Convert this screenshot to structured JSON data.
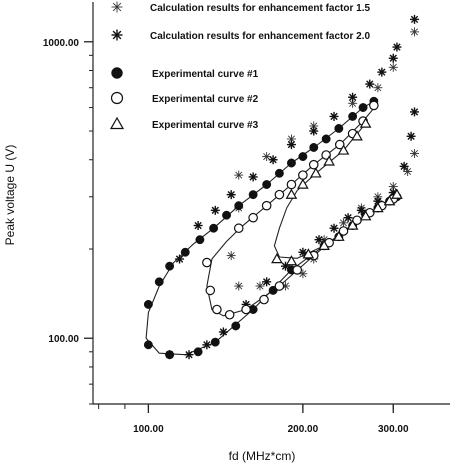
{
  "chart_data": {
    "type": "scatter",
    "xlabel": "fd (MHz*cm)",
    "ylabel": "Peak voltage U (V)",
    "x_scale": "log",
    "y_scale": "log",
    "xlim": [
      78,
      370
    ],
    "ylim": [
      60,
      1300
    ],
    "x_ticks": [
      {
        "value": 100,
        "label": "100.00"
      },
      {
        "value": 200,
        "label": "200.00"
      },
      {
        "value": 300,
        "label": "300.00"
      }
    ],
    "y_ticks": [
      {
        "value": 100,
        "label": "100.00"
      },
      {
        "value": 1000,
        "label": "1000.00"
      }
    ],
    "series": [
      {
        "name": "Calculation results for enhancement factor 1.5",
        "marker": "asterisk-light",
        "color": "#333333",
        "points": [
          [
            150,
            275
          ],
          [
            145,
            190
          ],
          [
            150,
            150
          ],
          [
            165,
            150
          ],
          [
            185,
            150
          ],
          [
            200,
            165
          ],
          [
            210,
            185
          ],
          [
            220,
            215
          ],
          [
            240,
            245
          ],
          [
            260,
            275
          ],
          [
            280,
            300
          ],
          [
            300,
            325
          ],
          [
            320,
            365
          ],
          [
            330,
            420
          ],
          [
            150,
            355
          ],
          [
            170,
            410
          ],
          [
            190,
            470
          ],
          [
            210,
            520
          ],
          [
            230,
            560
          ],
          [
            250,
            620
          ],
          [
            280,
            700
          ],
          [
            300,
            820
          ],
          [
            330,
            1080
          ]
        ]
      },
      {
        "name": "Calculation results for enhancement factor 2.0",
        "marker": "asterisk",
        "color": "#111111",
        "points": [
          [
            110,
            88
          ],
          [
            120,
            88
          ],
          [
            130,
            95
          ],
          [
            140,
            105
          ],
          [
            155,
            130
          ],
          [
            170,
            155
          ],
          [
            185,
            175
          ],
          [
            200,
            195
          ],
          [
            215,
            215
          ],
          [
            230,
            235
          ],
          [
            245,
            255
          ],
          [
            260,
            270
          ],
          [
            280,
            290
          ],
          [
            300,
            310
          ],
          [
            315,
            380
          ],
          [
            325,
            480
          ],
          [
            330,
            580
          ],
          [
            115,
            185
          ],
          [
            125,
            240
          ],
          [
            135,
            270
          ],
          [
            145,
            305
          ],
          [
            160,
            350
          ],
          [
            175,
            400
          ],
          [
            190,
            450
          ],
          [
            210,
            500
          ],
          [
            230,
            560
          ],
          [
            250,
            650
          ],
          [
            270,
            720
          ],
          [
            285,
            790
          ],
          [
            300,
            880
          ],
          [
            305,
            960
          ],
          [
            330,
            1190
          ]
        ]
      },
      {
        "name": "Experimental curve #1",
        "marker": "filled-circle",
        "color": "#111111",
        "points": [
          [
            100,
            95
          ],
          [
            110,
            88
          ],
          [
            125,
            90
          ],
          [
            135,
            97
          ],
          [
            148,
            110
          ],
          [
            160,
            125
          ],
          [
            175,
            145
          ],
          [
            190,
            170
          ],
          [
            205,
            190
          ],
          [
            220,
            205
          ],
          [
            235,
            220
          ],
          [
            250,
            240
          ],
          [
            265,
            260
          ],
          [
            280,
            275
          ],
          [
            295,
            290
          ],
          [
            305,
            300
          ],
          [
            100,
            130
          ],
          [
            105,
            155
          ],
          [
            110,
            175
          ],
          [
            118,
            195
          ],
          [
            126,
            215
          ],
          [
            134,
            235
          ],
          [
            142,
            260
          ],
          [
            150,
            280
          ],
          [
            160,
            305
          ],
          [
            170,
            330
          ],
          [
            180,
            360
          ],
          [
            190,
            390
          ],
          [
            200,
            410
          ],
          [
            210,
            440
          ],
          [
            222,
            470
          ],
          [
            235,
            510
          ],
          [
            250,
            560
          ],
          [
            262,
            600
          ],
          [
            275,
            630
          ]
        ]
      },
      {
        "name": "Experimental curve #2",
        "marker": "open-circle",
        "color": "#111111",
        "points": [
          [
            130,
            180
          ],
          [
            132,
            145
          ],
          [
            136,
            125
          ],
          [
            144,
            120
          ],
          [
            155,
            125
          ],
          [
            168,
            135
          ],
          [
            180,
            150
          ],
          [
            195,
            170
          ],
          [
            210,
            190
          ],
          [
            225,
            210
          ],
          [
            240,
            230
          ],
          [
            255,
            250
          ],
          [
            270,
            265
          ],
          [
            285,
            280
          ],
          [
            300,
            295
          ],
          [
            150,
            235
          ],
          [
            160,
            255
          ],
          [
            170,
            280
          ],
          [
            180,
            305
          ],
          [
            190,
            330
          ],
          [
            200,
            355
          ],
          [
            210,
            385
          ],
          [
            222,
            415
          ],
          [
            236,
            450
          ],
          [
            250,
            490
          ],
          [
            262,
            540
          ],
          [
            275,
            610
          ]
        ]
      },
      {
        "name": "Experimental curve #3",
        "marker": "triangle",
        "color": "#111111",
        "points": [
          [
            178,
            185
          ],
          [
            190,
            182
          ],
          [
            205,
            192
          ],
          [
            220,
            205
          ],
          [
            235,
            220
          ],
          [
            250,
            240
          ],
          [
            265,
            258
          ],
          [
            280,
            275
          ],
          [
            295,
            290
          ],
          [
            305,
            305
          ],
          [
            190,
            305
          ],
          [
            200,
            330
          ],
          [
            212,
            360
          ],
          [
            225,
            395
          ],
          [
            240,
            430
          ],
          [
            255,
            480
          ],
          [
            265,
            530
          ]
        ]
      }
    ],
    "fit_curves": [
      {
        "for": "Experimental curve #1",
        "points": [
          [
            305,
            300
          ],
          [
            280,
            275
          ],
          [
            250,
            240
          ],
          [
            220,
            205
          ],
          [
            190,
            170
          ],
          [
            160,
            125
          ],
          [
            135,
            97
          ],
          [
            118,
            88
          ],
          [
            105,
            89
          ],
          [
            99,
            100
          ],
          [
            100,
            122
          ],
          [
            105,
            150
          ],
          [
            112,
            180
          ],
          [
            122,
            207
          ],
          [
            134,
            235
          ],
          [
            150,
            280
          ],
          [
            170,
            330
          ],
          [
            190,
            390
          ],
          [
            212,
            445
          ],
          [
            235,
            510
          ],
          [
            262,
            600
          ],
          [
            280,
            640
          ]
        ]
      },
      {
        "for": "Experimental curve #2",
        "points": [
          [
            300,
            295
          ],
          [
            270,
            265
          ],
          [
            240,
            230
          ],
          [
            210,
            190
          ],
          [
            180,
            150
          ],
          [
            155,
            125
          ],
          [
            140,
            119
          ],
          [
            133,
            125
          ],
          [
            130,
            150
          ],
          [
            133,
            185
          ],
          [
            142,
            212
          ],
          [
            152,
            238
          ],
          [
            170,
            280
          ],
          [
            190,
            330
          ],
          [
            210,
            385
          ],
          [
            236,
            450
          ],
          [
            262,
            540
          ],
          [
            280,
            620
          ]
        ]
      },
      {
        "for": "Experimental curve #3",
        "points": [
          [
            305,
            305
          ],
          [
            280,
            275
          ],
          [
            250,
            240
          ],
          [
            220,
            205
          ],
          [
            195,
            186
          ],
          [
            180,
            188
          ],
          [
            176,
            205
          ],
          [
            180,
            235
          ],
          [
            186,
            275
          ],
          [
            195,
            315
          ],
          [
            212,
            360
          ],
          [
            240,
            430
          ],
          [
            265,
            530
          ]
        ]
      }
    ],
    "legend_position": "top-left"
  }
}
